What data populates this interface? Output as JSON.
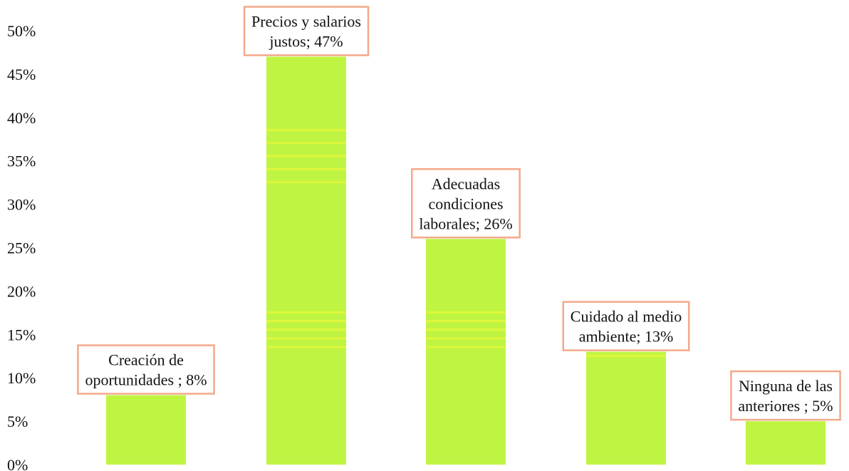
{
  "chart_data": {
    "type": "bar",
    "title": "",
    "xlabel": "",
    "ylabel": "",
    "ylim": [
      0,
      50
    ],
    "yticks": [
      "0%",
      "5%",
      "10%",
      "15%",
      "20%",
      "25%",
      "30%",
      "35%",
      "40%",
      "45%",
      "50%"
    ],
    "grid": false,
    "legend": "none",
    "categories": [
      "Creación de oportunidades",
      "Precios y salarios justos",
      "Adecuadas condiciones laborales",
      "Cuidado al medio ambiente",
      "Ninguna de las anteriores"
    ],
    "values": [
      8,
      47,
      26,
      13,
      5
    ],
    "data_labels": [
      [
        "Creación de",
        "oportunidades ; 8%"
      ],
      [
        "Precios y salarios",
        "justos; 47%"
      ],
      [
        "Adecuadas",
        "condiciones",
        "laborales; 26%"
      ],
      [
        "Cuidado al medio",
        "ambiente; 13%"
      ],
      [
        "Ninguna de las",
        "anteriores ; 5%"
      ]
    ],
    "colors": {
      "bar": "#bff542",
      "bar_stripe": "#e8f53a",
      "label_border": "#f2a98a",
      "text": "#111111"
    }
  }
}
